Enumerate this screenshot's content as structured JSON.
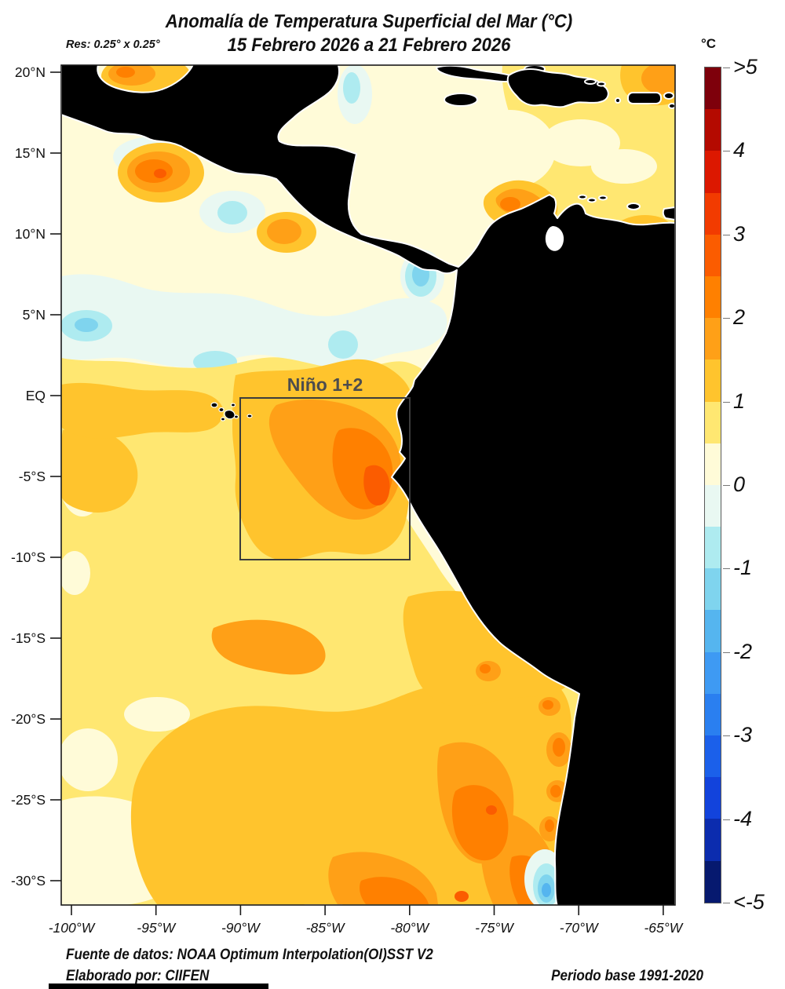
{
  "header": {
    "title_line1": "Anomalía de Temperatura Superficial del Mar (°C)",
    "title_line2": "15 Febrero 2026 a 21 Febrero 2026",
    "resolution": "Res: 0.25° x 0.25°",
    "colorbar_unit": "°C"
  },
  "map": {
    "region_box_label": "Niño 1+2",
    "lat_ticks": [
      "20°N",
      "15°N",
      "10°N",
      "5°N",
      "EQ",
      "-5°S",
      "-10°S",
      "-15°S",
      "-20°S",
      "-25°S",
      "-30°S"
    ],
    "lon_ticks": [
      "-100°W",
      "-95°W",
      "-90°W",
      "-85°W",
      "-80°W",
      "-75°W",
      "-70°W",
      "-65°W"
    ],
    "land_color": "#000000",
    "box_stroke_color": "#3c3c3c",
    "box_label_color": "#4d4d4d"
  },
  "colorbar": {
    "tick_labels": [
      ">5",
      "4",
      "3",
      "2",
      "1",
      "0",
      "-1",
      "-2",
      "-3",
      "-4",
      "<-5"
    ],
    "segments": [
      "#7E000B",
      "#B40A00",
      "#DC1800",
      "#F23B00",
      "#FB5C00",
      "#FF8000",
      "#FFA017",
      "#FFC42D",
      "#FFE771",
      "#FFFBD8",
      "#E9F8F2",
      "#AEEBF0",
      "#7FD4EE",
      "#55B5EF",
      "#3E9AF3",
      "#2A7FF0",
      "#1B60EA",
      "#1243DC",
      "#0B2CAE",
      "#06196F"
    ]
  },
  "footer": {
    "source": "Fuente de datos: NOAA Optimum Interpolation(OI)SST V2",
    "author": "Elaborado por: CIIFEN",
    "baseline": "Periodo base 1991-2020"
  }
}
